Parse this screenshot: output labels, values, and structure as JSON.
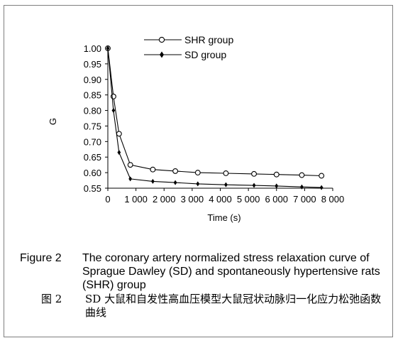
{
  "chart_data": {
    "type": "line",
    "title": "",
    "xlabel": "Time (s)",
    "ylabel": "G",
    "xlim": [
      0,
      8000
    ],
    "ylim": [
      0.55,
      1.0
    ],
    "x_ticks": [
      0,
      1000,
      2000,
      3000,
      4000,
      5000,
      6000,
      7000,
      8000
    ],
    "x_tick_labels": [
      "0",
      "1 000",
      "2 000",
      "3 000",
      "4 000",
      "5 000",
      "6 000",
      "7 000",
      "8 000"
    ],
    "y_ticks": [
      0.55,
      0.6,
      0.65,
      0.7,
      0.75,
      0.8,
      0.85,
      0.9,
      0.95,
      1.0
    ],
    "y_tick_labels": [
      "0.55",
      "0.60",
      "0.65",
      "0.70",
      "0.75",
      "0.80",
      "0.85",
      "0.90",
      "0.95",
      "1.00"
    ],
    "grid": false,
    "legend_position": "top-center",
    "series": [
      {
        "name": "SHR group",
        "marker": "circle",
        "color": "#000000",
        "x": [
          0,
          200,
          400,
          800,
          1600,
          2400,
          3200,
          4200,
          5200,
          6000,
          6900,
          7600
        ],
        "y": [
          1.0,
          0.845,
          0.725,
          0.625,
          0.61,
          0.605,
          0.6,
          0.598,
          0.596,
          0.594,
          0.592,
          0.59
        ]
      },
      {
        "name": "SD group",
        "marker": "tick",
        "color": "#000000",
        "x": [
          0,
          200,
          400,
          800,
          1600,
          2400,
          3200,
          4200,
          5200,
          6000,
          6900,
          7600
        ],
        "y": [
          1.0,
          0.8,
          0.665,
          0.58,
          0.572,
          0.568,
          0.564,
          0.561,
          0.559,
          0.557,
          0.554,
          0.552
        ]
      }
    ]
  },
  "caption": {
    "en_label": "Figure 2",
    "en_text": "The coronary artery normalized stress relaxation curve of Sprague Dawley (SD) and spontaneously hypertensive rats (SHR) group",
    "cn_label": "图 2",
    "cn_text": "SD 大鼠和自发性高血压模型大鼠冠状动脉归一化应力松弛函数曲线"
  }
}
